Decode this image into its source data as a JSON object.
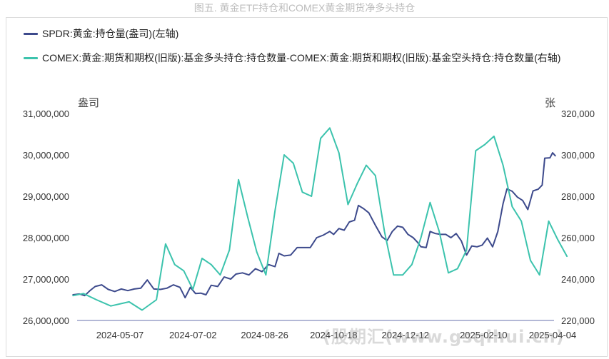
{
  "title": "图五. 黄金ETF持仓和COMEX黄金期货净多头持仓",
  "watermark": "(股期汇(www.gsqihui.cn)",
  "chart_data": {
    "type": "line",
    "left_unit": "盎司",
    "right_unit": "张",
    "y_left": {
      "min": 26000000,
      "max": 31000000,
      "ticks": [
        "26,000,000",
        "27,000,000",
        "28,000,000",
        "29,000,000",
        "30,000,000",
        "31,000,000"
      ]
    },
    "y_right": {
      "min": 220000,
      "max": 320000,
      "ticks": [
        "220,000",
        "240,000",
        "260,000",
        "280,000",
        "300,000",
        "320,000"
      ]
    },
    "x_ticks": [
      "2024-05-07",
      "2024-07-02",
      "2024-08-26",
      "2024-10-18",
      "2024-12-12",
      "2025-02-10",
      "2025-04-04"
    ],
    "x_range": [
      "2024-04-01",
      "2025-04-07"
    ],
    "series": [
      {
        "name": "SPDR:黄金:持仓量(盎司)(左轴)",
        "axis": "left",
        "color": "#3d4a8c",
        "points": [
          [
            "2024-04-01",
            26620000
          ],
          [
            "2024-04-06",
            26640000
          ],
          [
            "2024-04-10",
            26600000
          ],
          [
            "2024-04-14",
            26720000
          ],
          [
            "2024-04-18",
            26820000
          ],
          [
            "2024-04-23",
            26860000
          ],
          [
            "2024-04-28",
            26750000
          ],
          [
            "2024-05-03",
            26700000
          ],
          [
            "2024-05-08",
            26760000
          ],
          [
            "2024-05-13",
            26720000
          ],
          [
            "2024-05-18",
            26760000
          ],
          [
            "2024-05-23",
            26780000
          ],
          [
            "2024-05-28",
            26980000
          ],
          [
            "2024-06-02",
            26760000
          ],
          [
            "2024-06-07",
            26750000
          ],
          [
            "2024-06-12",
            26780000
          ],
          [
            "2024-06-17",
            26860000
          ],
          [
            "2024-06-22",
            26800000
          ],
          [
            "2024-06-26",
            26550000
          ],
          [
            "2024-06-30",
            26800000
          ],
          [
            "2024-07-04",
            26650000
          ],
          [
            "2024-07-08",
            26660000
          ],
          [
            "2024-07-12",
            26620000
          ],
          [
            "2024-07-16",
            26850000
          ],
          [
            "2024-07-21",
            26820000
          ],
          [
            "2024-07-26",
            27050000
          ],
          [
            "2024-07-31",
            27000000
          ],
          [
            "2024-08-04",
            27120000
          ],
          [
            "2024-08-09",
            27150000
          ],
          [
            "2024-08-14",
            27100000
          ],
          [
            "2024-08-19",
            27250000
          ],
          [
            "2024-08-24",
            27180000
          ],
          [
            "2024-08-29",
            27350000
          ],
          [
            "2024-09-03",
            27300000
          ],
          [
            "2024-09-06",
            27620000
          ],
          [
            "2024-09-10",
            27560000
          ],
          [
            "2024-09-15",
            27580000
          ],
          [
            "2024-09-20",
            27760000
          ],
          [
            "2024-09-25",
            27760000
          ],
          [
            "2024-09-30",
            27760000
          ],
          [
            "2024-10-05",
            28000000
          ],
          [
            "2024-10-10",
            28060000
          ],
          [
            "2024-10-15",
            28150000
          ],
          [
            "2024-10-18",
            28080000
          ],
          [
            "2024-10-22",
            28220000
          ],
          [
            "2024-10-26",
            28180000
          ],
          [
            "2024-10-30",
            28380000
          ],
          [
            "2024-11-03",
            28420000
          ],
          [
            "2024-11-06",
            28780000
          ],
          [
            "2024-11-10",
            28700000
          ],
          [
            "2024-11-14",
            28600000
          ],
          [
            "2024-11-19",
            28300000
          ],
          [
            "2024-11-24",
            28020000
          ],
          [
            "2024-11-28",
            27930000
          ],
          [
            "2024-12-02",
            28150000
          ],
          [
            "2024-12-06",
            28280000
          ],
          [
            "2024-12-10",
            28250000
          ],
          [
            "2024-12-14",
            28080000
          ],
          [
            "2024-12-18",
            28000000
          ],
          [
            "2024-12-21",
            27900000
          ],
          [
            "2024-12-24",
            27780000
          ],
          [
            "2024-12-28",
            27760000
          ],
          [
            "2024-12-31",
            28150000
          ],
          [
            "2025-01-04",
            28100000
          ],
          [
            "2025-01-08",
            28080000
          ],
          [
            "2025-01-12",
            28080000
          ],
          [
            "2025-01-16",
            28000000
          ],
          [
            "2025-01-20",
            28100000
          ],
          [
            "2025-01-24",
            27920000
          ],
          [
            "2025-01-28",
            27580000
          ],
          [
            "2025-02-01",
            27800000
          ],
          [
            "2025-02-05",
            27780000
          ],
          [
            "2025-02-09",
            27820000
          ],
          [
            "2025-02-13",
            27990000
          ],
          [
            "2025-02-17",
            27780000
          ],
          [
            "2025-02-21",
            28150000
          ],
          [
            "2025-02-25",
            28820000
          ],
          [
            "2025-02-28",
            29180000
          ],
          [
            "2025-03-04",
            29120000
          ],
          [
            "2025-03-08",
            28980000
          ],
          [
            "2025-03-12",
            28900000
          ],
          [
            "2025-03-16",
            28680000
          ],
          [
            "2025-03-20",
            29130000
          ],
          [
            "2025-03-24",
            29170000
          ],
          [
            "2025-03-27",
            29270000
          ],
          [
            "2025-03-29",
            29920000
          ],
          [
            "2025-04-02",
            29930000
          ],
          [
            "2025-04-04",
            30050000
          ],
          [
            "2025-04-06",
            29980000
          ]
        ]
      },
      {
        "name": "COMEX:黄金:期货和期权(旧版):基金多头持仓:持仓数量-COMEX:黄金:期货和期权(旧版):基金空头持仓:持仓数量(右轴)",
        "axis": "right",
        "color": "#3cc3ad",
        "points": [
          [
            "2024-04-01",
            232000
          ],
          [
            "2024-04-09",
            233000
          ],
          [
            "2024-04-19",
            230000
          ],
          [
            "2024-04-30",
            227000
          ],
          [
            "2024-05-14",
            229000
          ],
          [
            "2024-05-24",
            225000
          ],
          [
            "2024-06-04",
            230000
          ],
          [
            "2024-06-11",
            257000
          ],
          [
            "2024-06-18",
            247000
          ],
          [
            "2024-06-25",
            244000
          ],
          [
            "2024-07-02",
            235000
          ],
          [
            "2024-07-09",
            250000
          ],
          [
            "2024-07-16",
            247000
          ],
          [
            "2024-07-23",
            242000
          ],
          [
            "2024-07-30",
            254000
          ],
          [
            "2024-08-06",
            288000
          ],
          [
            "2024-08-13",
            270000
          ],
          [
            "2024-08-20",
            253000
          ],
          [
            "2024-08-27",
            242000
          ],
          [
            "2024-09-03",
            273000
          ],
          [
            "2024-09-10",
            300000
          ],
          [
            "2024-09-17",
            296000
          ],
          [
            "2024-09-24",
            282000
          ],
          [
            "2024-10-01",
            280000
          ],
          [
            "2024-10-08",
            308000
          ],
          [
            "2024-10-15",
            313000
          ],
          [
            "2024-10-22",
            301000
          ],
          [
            "2024-10-29",
            276000
          ],
          [
            "2024-11-05",
            286000
          ],
          [
            "2024-11-12",
            295000
          ],
          [
            "2024-11-19",
            290000
          ],
          [
            "2024-11-26",
            263000
          ],
          [
            "2024-12-03",
            242000
          ],
          [
            "2024-12-10",
            242000
          ],
          [
            "2024-12-17",
            247000
          ],
          [
            "2024-12-24",
            260000
          ],
          [
            "2024-12-31",
            277000
          ],
          [
            "2025-01-07",
            263000
          ],
          [
            "2025-01-14",
            243000
          ],
          [
            "2025-01-21",
            245000
          ],
          [
            "2025-01-28",
            254000
          ],
          [
            "2025-02-04",
            302000
          ],
          [
            "2025-02-11",
            305000
          ],
          [
            "2025-02-18",
            309000
          ],
          [
            "2025-02-25",
            295000
          ],
          [
            "2025-03-04",
            275000
          ],
          [
            "2025-03-11",
            268000
          ],
          [
            "2025-03-18",
            249000
          ],
          [
            "2025-03-25",
            242000
          ],
          [
            "2025-04-01",
            268000
          ],
          [
            "2025-04-08",
            259000
          ],
          [
            "2025-04-15",
            251000
          ]
        ]
      }
    ]
  }
}
